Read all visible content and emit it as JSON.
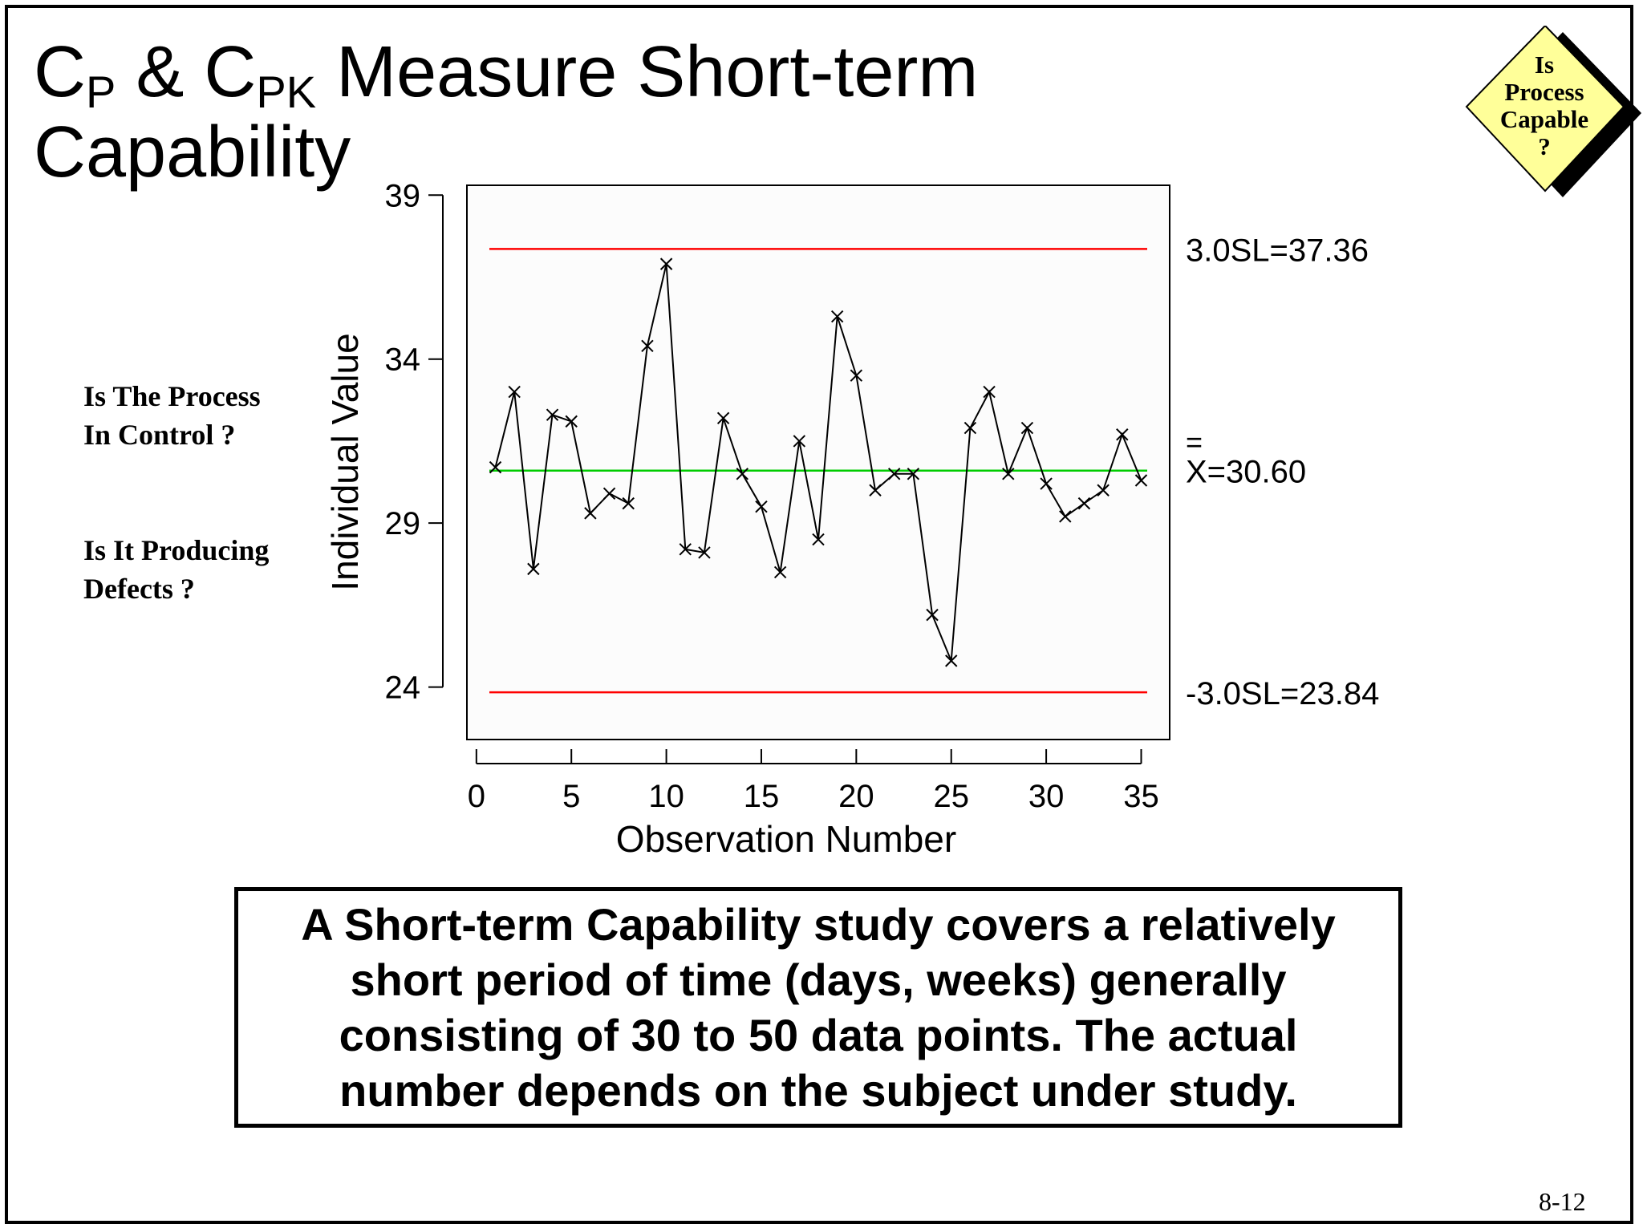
{
  "title": {
    "c1": "C",
    "sub1": "P",
    "amp": " & ",
    "c2": "C",
    "sub2": "PK",
    "rest_line1": " Measure Short-term",
    "line2": "Capability"
  },
  "questions": {
    "q1_line1": "Is The Process",
    "q1_line2": "In Control ?",
    "q2_line1": "Is It Producing",
    "q2_line2": "Defects ?"
  },
  "badge": {
    "lines": [
      "Is",
      "Process",
      "Capable",
      "?"
    ],
    "fill_color": "#ffff99",
    "shadow_color": "#000000"
  },
  "caption": "A Short-term Capability study covers a relatively short period of time (days, weeks) generally consisting of 30 to 50 data points. The actual number depends on the subject under study.",
  "page_number": "8-12",
  "chart_data": {
    "type": "line",
    "xlabel": "Observation Number",
    "ylabel": "Individual Value",
    "xlim": [
      -0.5,
      36.5
    ],
    "ylim": [
      22.4,
      39.3
    ],
    "x_ticks": [
      0,
      5,
      10,
      15,
      20,
      25,
      30,
      35
    ],
    "y_ticks": [
      24,
      29,
      34,
      39
    ],
    "grid": false,
    "series": [
      {
        "marker": "x",
        "color": "#000000",
        "x": [
          1,
          2,
          3,
          4,
          5,
          6,
          7,
          8,
          9,
          10,
          11,
          12,
          13,
          14,
          15,
          16,
          17,
          18,
          19,
          20,
          21,
          22,
          23,
          24,
          25,
          26,
          27,
          28,
          29,
          30,
          31,
          32,
          33,
          34,
          35
        ],
        "values": [
          30.7,
          33.0,
          27.6,
          32.3,
          32.1,
          29.3,
          29.9,
          29.6,
          34.4,
          36.9,
          28.2,
          28.1,
          32.2,
          30.5,
          29.5,
          27.5,
          31.5,
          28.5,
          35.3,
          33.5,
          30.0,
          30.5,
          30.5,
          26.2,
          24.8,
          31.9,
          33.0,
          30.5,
          31.9,
          30.2,
          29.2,
          29.6,
          30.0,
          31.7,
          30.3
        ]
      }
    ],
    "reference_lines": [
      {
        "y": 37.36,
        "label": "3.0SL=37.36",
        "color": "#ff0000"
      },
      {
        "y": 30.6,
        "label": "X=30.60",
        "overbar": "=",
        "color": "#00cc00"
      },
      {
        "y": 23.84,
        "label": "-3.0SL=23.84",
        "color": "#ff0000"
      }
    ]
  }
}
